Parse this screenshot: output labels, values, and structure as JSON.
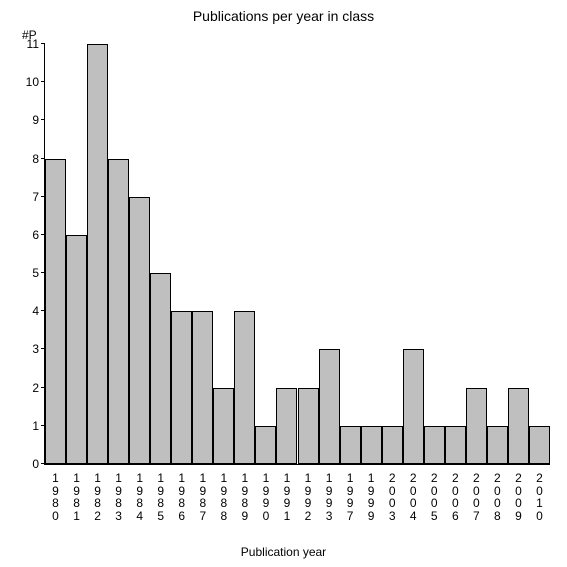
{
  "chart": {
    "type": "bar",
    "title": "Publications per year in class",
    "title_fontsize": 14,
    "x_axis_label": "Publication year",
    "y_axis_label": "#P",
    "label_fontsize": 12,
    "background_color": "#ffffff",
    "axis_color": "#000000",
    "bar_color": "#bfbfbf",
    "bar_border_color": "#000000",
    "tick_fontsize": 12,
    "ylim": [
      0,
      11
    ],
    "ytick_step": 1,
    "yticks": [
      0,
      1,
      2,
      3,
      4,
      5,
      6,
      7,
      8,
      9,
      10,
      11
    ],
    "categories": [
      "1980",
      "1981",
      "1982",
      "1983",
      "1984",
      "1985",
      "1986",
      "1987",
      "1988",
      "1989",
      "1990",
      "1991",
      "1992",
      "1993",
      "1997",
      "1999",
      "2003",
      "2004",
      "2005",
      "2006",
      "2007",
      "2008",
      "2009",
      "2010"
    ],
    "values": [
      8,
      6,
      11,
      8,
      7,
      5,
      4,
      4,
      2,
      4,
      1,
      2,
      2,
      3,
      1,
      1,
      1,
      3,
      1,
      1,
      2,
      1,
      2,
      1
    ],
    "bar_width_ratio": 1.0
  }
}
